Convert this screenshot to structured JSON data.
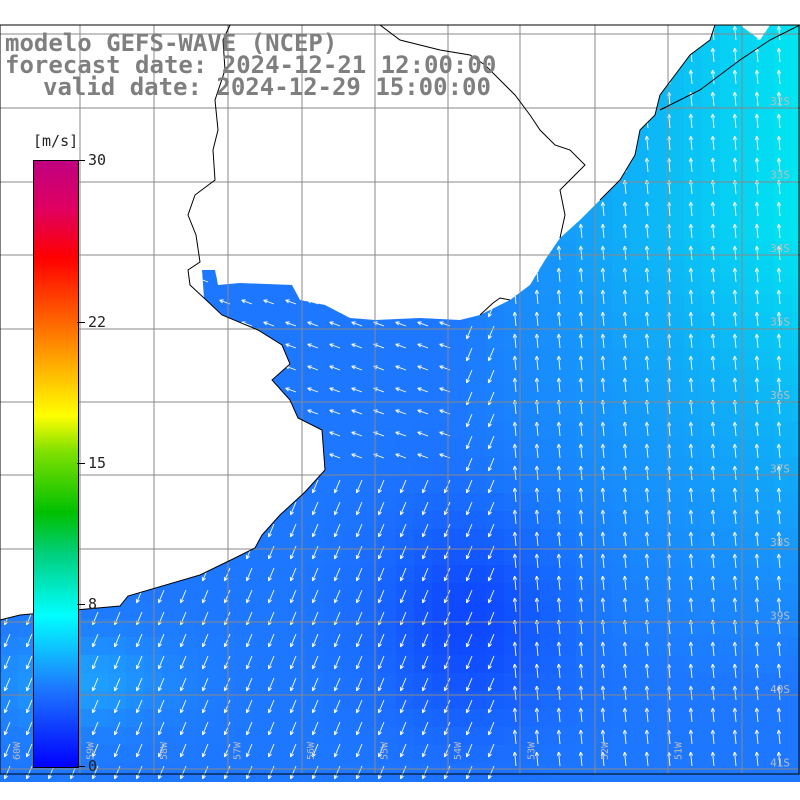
{
  "title": {
    "line1": "modelo GEFS-WAVE (NCEP)",
    "line2": "forecast date: 2024-12-21 12:00:00",
    "line3": "valid date: 2024-12-29 15:00:00"
  },
  "colorbar": {
    "unit": "[m/s]",
    "min": 0,
    "max": 30,
    "ticks": [
      {
        "value": 30,
        "label": "30"
      },
      {
        "value": 22,
        "label": "22"
      },
      {
        "value": 15,
        "label": "15"
      },
      {
        "value": 8,
        "label": "8"
      },
      {
        "value": 0,
        "label": "0"
      }
    ],
    "colors": [
      "#0000ff",
      "#1e78ff",
      "#00ffff",
      "#00c000",
      "#ffff00",
      "#ff6000",
      "#ff0000",
      "#c00080"
    ]
  },
  "map": {
    "latitude_labels": [
      "32S",
      "33S",
      "34S",
      "35S",
      "36S",
      "37S",
      "38S",
      "39S",
      "40S",
      "41S"
    ],
    "longitude_labels": [
      "60W",
      "59W",
      "58W",
      "57W",
      "56W",
      "55W",
      "54W",
      "53W",
      "52W",
      "51W"
    ],
    "land_color": "#ffffff",
    "grid_color": "#888888",
    "coast_color": "#000000",
    "arrow_color": "#ffffff"
  }
}
